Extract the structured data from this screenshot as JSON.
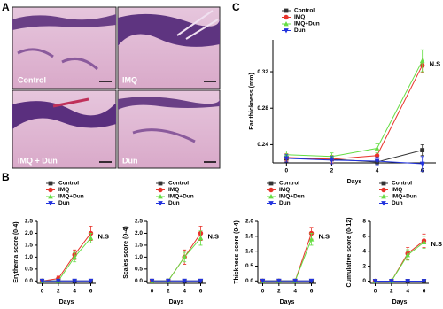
{
  "panel_labels": [
    "A",
    "B",
    "C"
  ],
  "images": [
    "Control",
    "IMQ",
    "IMQ + Dun",
    "Dun"
  ],
  "chart_data": [
    {
      "type": "line",
      "ylabel": "Ear thickness (mm)",
      "xlabel": "Days",
      "annotation": "N.S",
      "x": [
        0,
        2,
        4,
        6
      ],
      "xlim": [
        -0.6,
        6.6
      ],
      "xticks": [
        0,
        2,
        4,
        6
      ],
      "ylim": [
        0.22,
        0.355
      ],
      "yticks": [
        0.24,
        0.28,
        0.32
      ],
      "series": [
        {
          "name": "Control",
          "color": "#333333",
          "marker": "square",
          "values": [
            0.225,
            0.224,
            0.221,
            0.234
          ],
          "errors": [
            0.004,
            0.004,
            0.003,
            0.006
          ]
        },
        {
          "name": "IMQ",
          "color": "#e8332a",
          "marker": "circle",
          "values": [
            0.226,
            0.224,
            0.228,
            0.327
          ],
          "errors": [
            0.004,
            0.004,
            0.005,
            0.008
          ]
        },
        {
          "name": "IMQ+Dun",
          "color": "#66dd44",
          "marker": "triangle-up",
          "values": [
            0.229,
            0.227,
            0.236,
            0.332
          ],
          "errors": [
            0.004,
            0.004,
            0.005,
            0.012
          ]
        },
        {
          "name": "Dun",
          "color": "#2233dd",
          "marker": "triangle-down",
          "values": [
            0.225,
            0.223,
            0.222,
            0.219
          ],
          "errors": [
            0.004,
            0.004,
            0.004,
            0.008
          ]
        }
      ]
    },
    {
      "type": "line",
      "ylabel": "Erythema score (0-4)",
      "xlabel": "Days",
      "annotation": "N.S",
      "x": [
        0,
        2,
        4,
        6
      ],
      "xlim": [
        -0.6,
        6.6
      ],
      "xticks": [
        0,
        2,
        4,
        6
      ],
      "ylim": [
        -0.1,
        2.5
      ],
      "yticks": [
        {
          "value": 0,
          "label": "0.0"
        },
        0.5,
        {
          "value": 1,
          "label": "1.0"
        },
        1.5,
        {
          "value": 2,
          "label": "2.0"
        },
        2.5
      ],
      "series": [
        {
          "name": "Control",
          "color": "#333333",
          "marker": "square",
          "values": [
            0,
            0,
            0,
            0
          ],
          "errors": [
            0,
            0,
            0,
            0
          ]
        },
        {
          "name": "IMQ",
          "color": "#e8332a",
          "marker": "circle",
          "values": [
            0,
            0.1,
            1.1,
            2.0
          ],
          "errors": [
            0,
            0.1,
            0.2,
            0.3
          ]
        },
        {
          "name": "IMQ+Dun",
          "color": "#66dd44",
          "marker": "triangle-up",
          "values": [
            0,
            0,
            1.0,
            1.8
          ],
          "errors": [
            0,
            0,
            0.2,
            0.2
          ]
        },
        {
          "name": "Dun",
          "color": "#2233dd",
          "marker": "triangle-down",
          "values": [
            0,
            0,
            0,
            0
          ],
          "errors": [
            0,
            0,
            0,
            0
          ]
        }
      ]
    },
    {
      "type": "line",
      "ylabel": "Scales score (0-4)",
      "xlabel": "Days",
      "annotation": "N.S",
      "x": [
        0,
        2,
        4,
        6
      ],
      "xlim": [
        -0.6,
        6.6
      ],
      "xticks": [
        0,
        2,
        4,
        6
      ],
      "ylim": [
        -0.1,
        2.5
      ],
      "yticks": [
        {
          "value": 0,
          "label": "0.0"
        },
        0.5,
        {
          "value": 1,
          "label": "1.0"
        },
        1.5,
        {
          "value": 2,
          "label": "2.0"
        },
        2.5
      ],
      "series": [
        {
          "name": "Control",
          "color": "#333333",
          "marker": "square",
          "values": [
            0,
            0,
            0,
            0
          ],
          "errors": [
            0,
            0,
            0,
            0
          ]
        },
        {
          "name": "IMQ",
          "color": "#e8332a",
          "marker": "circle",
          "values": [
            0,
            0,
            1.0,
            2.0
          ],
          "errors": [
            0,
            0,
            0.3,
            0.3
          ]
        },
        {
          "name": "IMQ+Dun",
          "color": "#66dd44",
          "marker": "triangle-up",
          "values": [
            0,
            0,
            1.0,
            1.8
          ],
          "errors": [
            0,
            0,
            0.2,
            0.3
          ]
        },
        {
          "name": "Dun",
          "color": "#2233dd",
          "marker": "triangle-down",
          "values": [
            0,
            0,
            0,
            0
          ],
          "errors": [
            0,
            0,
            0,
            0
          ]
        }
      ]
    },
    {
      "type": "line",
      "ylabel": "Thickness score (0-4)",
      "xlabel": "Days",
      "annotation": "N.S",
      "x": [
        0,
        2,
        4,
        6
      ],
      "xlim": [
        -0.6,
        6.6
      ],
      "xticks": [
        0,
        2,
        4,
        6
      ],
      "ylim": [
        -0.08,
        2.0
      ],
      "yticks": [
        {
          "value": 0,
          "label": "0.0"
        },
        0.5,
        {
          "value": 1,
          "label": "1.0"
        },
        1.5,
        {
          "value": 2,
          "label": "2.0"
        }
      ],
      "series": [
        {
          "name": "Control",
          "color": "#333333",
          "marker": "square",
          "values": [
            0,
            0,
            0,
            0
          ],
          "errors": [
            0,
            0,
            0,
            0
          ]
        },
        {
          "name": "IMQ",
          "color": "#e8332a",
          "marker": "circle",
          "values": [
            0,
            0,
            0,
            1.6
          ],
          "errors": [
            0,
            0,
            0,
            0.2
          ]
        },
        {
          "name": "IMQ+Dun",
          "color": "#66dd44",
          "marker": "triangle-up",
          "values": [
            0,
            0,
            0,
            1.4
          ],
          "errors": [
            0,
            0,
            0,
            0.2
          ]
        },
        {
          "name": "Dun",
          "color": "#2233dd",
          "marker": "triangle-down",
          "values": [
            0,
            0,
            0,
            0
          ],
          "errors": [
            0,
            0,
            0,
            0
          ]
        }
      ]
    },
    {
      "type": "line",
      "ylabel": "Cumulative score (0-12)",
      "xlabel": "Days",
      "annotation": "N.S",
      "x": [
        0,
        2,
        4,
        6
      ],
      "xlim": [
        -0.6,
        6.6
      ],
      "xticks": [
        0,
        2,
        4,
        6
      ],
      "ylim": [
        -0.3,
        8
      ],
      "yticks": [
        0,
        2,
        4,
        6,
        8
      ],
      "series": [
        {
          "name": "Control",
          "color": "#333333",
          "marker": "square",
          "values": [
            0,
            0,
            0,
            0
          ],
          "errors": [
            0,
            0,
            0,
            0
          ]
        },
        {
          "name": "IMQ",
          "color": "#e8332a",
          "marker": "circle",
          "values": [
            0,
            0,
            3.7,
            5.4
          ],
          "errors": [
            0,
            0.2,
            0.8,
            0.9
          ]
        },
        {
          "name": "IMQ+Dun",
          "color": "#66dd44",
          "marker": "triangle-up",
          "values": [
            0,
            0,
            3.5,
            5.2
          ],
          "errors": [
            0,
            0,
            0.7,
            0.8
          ]
        },
        {
          "name": "Dun",
          "color": "#2233dd",
          "marker": "triangle-down",
          "values": [
            0,
            0,
            0,
            0
          ],
          "errors": [
            0,
            0,
            0,
            0
          ]
        }
      ]
    }
  ]
}
